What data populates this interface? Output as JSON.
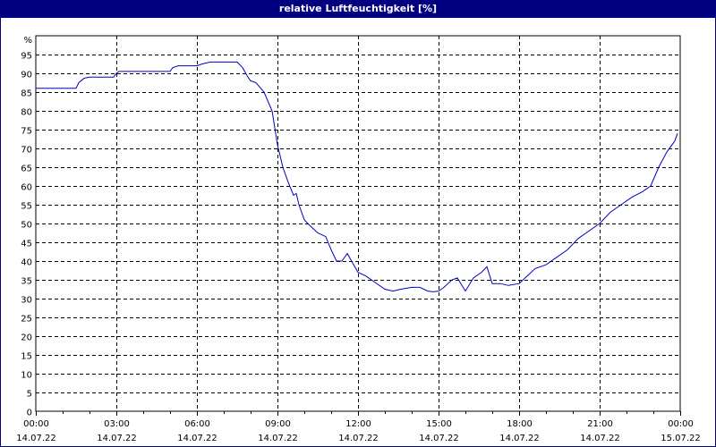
{
  "window": {
    "title": "relative Luftfeuchtigkeit [%]"
  },
  "colors": {
    "titlebar": "#000080",
    "line": "#0000C0",
    "grid": "#000000",
    "background": "#FFFFFF"
  },
  "chart_data": {
    "type": "line",
    "title": "relative Luftfeuchtigkeit [%]",
    "xlabel": "",
    "ylabel": "%",
    "ylim": [
      0,
      100
    ],
    "yticks": [
      0,
      5,
      10,
      15,
      20,
      25,
      30,
      35,
      40,
      45,
      50,
      55,
      60,
      65,
      70,
      75,
      80,
      85,
      90,
      95
    ],
    "xticks": [
      {
        "time": "00:00",
        "date": "14.07.22"
      },
      {
        "time": "03:00",
        "date": "14.07.22"
      },
      {
        "time": "06:00",
        "date": "14.07.22"
      },
      {
        "time": "09:00",
        "date": "14.07.22"
      },
      {
        "time": "12:00",
        "date": "14.07.22"
      },
      {
        "time": "15:00",
        "date": "14.07.22"
      },
      {
        "time": "18:00",
        "date": "14.07.22"
      },
      {
        "time": "21:00",
        "date": "14.07.22"
      },
      {
        "time": "00:00",
        "date": "15.07.22"
      }
    ],
    "grid": true,
    "legend": null,
    "series": [
      {
        "name": "relative Luftfeuchtigkeit",
        "x_hours": [
          0,
          0.5,
          1,
          1.5,
          1.6,
          1.8,
          2,
          2.5,
          2.9,
          3,
          3.1,
          3.5,
          4,
          4.5,
          5,
          5.1,
          5.3,
          5.5,
          6,
          6.2,
          6.5,
          7,
          7.5,
          7.7,
          7.9,
          8,
          8.2,
          8.5,
          8.8,
          9,
          9.2,
          9.4,
          9.6,
          9.7,
          9.8,
          10,
          10.2,
          10.5,
          10.8,
          11,
          11.2,
          11.4,
          11.6,
          11.8,
          12,
          12.3,
          12.6,
          13,
          13.3,
          13.6,
          14,
          14.3,
          14.6,
          14.8,
          15,
          15.2,
          15.5,
          15.7,
          16,
          16.3,
          16.6,
          16.8,
          17,
          17.3,
          17.6,
          18,
          18.3,
          18.6,
          19,
          19.4,
          19.8,
          20.2,
          20.6,
          21,
          21.4,
          21.8,
          22.2,
          22.6,
          22.9,
          23.2,
          23.5,
          23.8,
          23.9
        ],
        "values": [
          86,
          86,
          86,
          86,
          87.5,
          88.7,
          89,
          89,
          89,
          90,
          90.5,
          90.5,
          90.5,
          90.5,
          90.5,
          91.5,
          92,
          92,
          92,
          92.5,
          93,
          93,
          93,
          91.5,
          89,
          88,
          87.5,
          85,
          80,
          71,
          65,
          61,
          57.5,
          58,
          55,
          51,
          49.5,
          47.5,
          46.5,
          43,
          40,
          40,
          42,
          39.5,
          37,
          36,
          34.5,
          32.5,
          32,
          32.5,
          33,
          33,
          32,
          31.8,
          32,
          33,
          35,
          35.5,
          32,
          35.5,
          37,
          38.5,
          34,
          34,
          33.5,
          34,
          36,
          38,
          39,
          41,
          43,
          46,
          48,
          50,
          53,
          55,
          57,
          58.5,
          60,
          65,
          69,
          72,
          74
        ]
      }
    ]
  }
}
